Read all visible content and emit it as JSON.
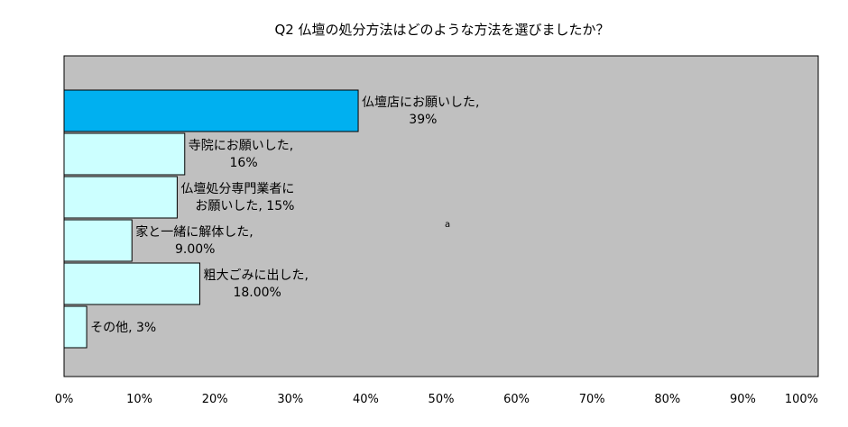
{
  "chart_data": {
    "type": "bar",
    "orientation": "horizontal",
    "title": "Q2 仏壇の処分方法はどのような方法を選びましたか？",
    "xlabel": "",
    "ylabel": "",
    "xlim": [
      0,
      100
    ],
    "x_ticks": [
      "0%",
      "10%",
      "20%",
      "30%",
      "40%",
      "50%",
      "60%",
      "70%",
      "80%",
      "90%",
      "100%"
    ],
    "categories": [
      "仏壇店にお願いした",
      "寺院にお願いした",
      "仏壇処分専門業者にお願いした",
      "家と一緒に解体した",
      "粗大ごみに出した",
      "その他"
    ],
    "values": [
      39,
      16,
      15,
      9,
      18,
      3
    ],
    "data_labels": [
      [
        "仏壇店にお願いした,",
        "39%"
      ],
      [
        "寺院にお願いした,",
        "16%"
      ],
      [
        "仏壇処分専門業者に",
        "お願いした, 15%"
      ],
      [
        "家と一緒に解体した,",
        "9.00%"
      ],
      [
        "粗大ごみに出した,",
        "18.00%"
      ],
      [
        "その他, 3%"
      ]
    ],
    "bar_colors": [
      "#00B0F0",
      "#CCFFFF",
      "#CCFFFF",
      "#CCFFFF",
      "#CCFFFF",
      "#CCFFFF"
    ],
    "plot_background": "#C0C0C0",
    "grid": false,
    "stray_text": "a"
  }
}
